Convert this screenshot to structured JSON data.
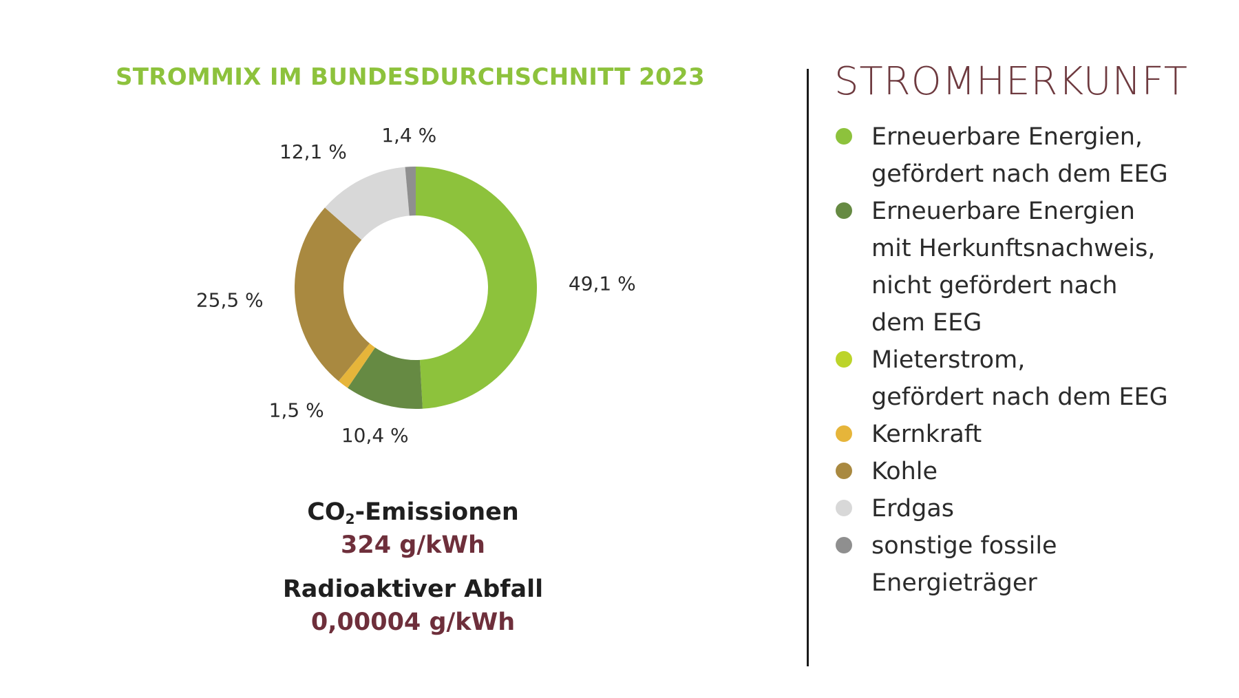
{
  "chart_data": {
    "type": "pie",
    "title": "STROMMIX IM BUNDESDURCHSCHNITT 2023",
    "categories": [
      "Erneuerbare Energien, gefördert nach dem EEG",
      "Erneuerbare Energien mit Herkunftsnachweis, nicht gefördert nach dem EEG",
      "Mieterstrom, gefördert nach dem EEG",
      "Kernkraft",
      "Kohle",
      "Erdgas",
      "sonstige fossile Energieträger"
    ],
    "values": [
      49.1,
      10.4,
      0,
      1.5,
      25.5,
      12.1,
      1.4
    ],
    "value_labels": [
      "49,1 %",
      "10,4 %",
      "",
      "1,5 %",
      "25,5 %",
      "12,1 %",
      "1,4 %"
    ],
    "colors": [
      "#8dc23c",
      "#668a43",
      "#bcd42a",
      "#e6b53a",
      "#a98940",
      "#d8d8d8",
      "#8f8f8f"
    ],
    "hole": "donut",
    "legend_position": "right"
  },
  "legend": {
    "title": "STROMHERKUNFT",
    "items": [
      {
        "label": "Erneuerbare Energien,\ngefördert nach dem EEG",
        "color": "#8dc23c"
      },
      {
        "label": "Erneuerbare Energien\nmit Herkunftsnachweis,\nnicht gefördert nach\ndem EEG",
        "color": "#668a43"
      },
      {
        "label": "Mieterstrom,\ngefördert nach dem EEG",
        "color": "#bcd42a"
      },
      {
        "label": "Kernkraft",
        "color": "#e6b53a"
      },
      {
        "label": "Kohle",
        "color": "#a98940"
      },
      {
        "label": "Erdgas",
        "color": "#d8d8d8"
      },
      {
        "label": "sonstige fossile\nEnergieträger",
        "color": "#8f8f8f"
      }
    ]
  },
  "stats": {
    "co2_label_main": "CO",
    "co2_label_sub": "2",
    "co2_label_rest": "-Emissionen",
    "co2_value": "324 g/kWh",
    "waste_label": "Radioaktiver Abfall",
    "waste_value": "0,00004 g/kWh"
  }
}
